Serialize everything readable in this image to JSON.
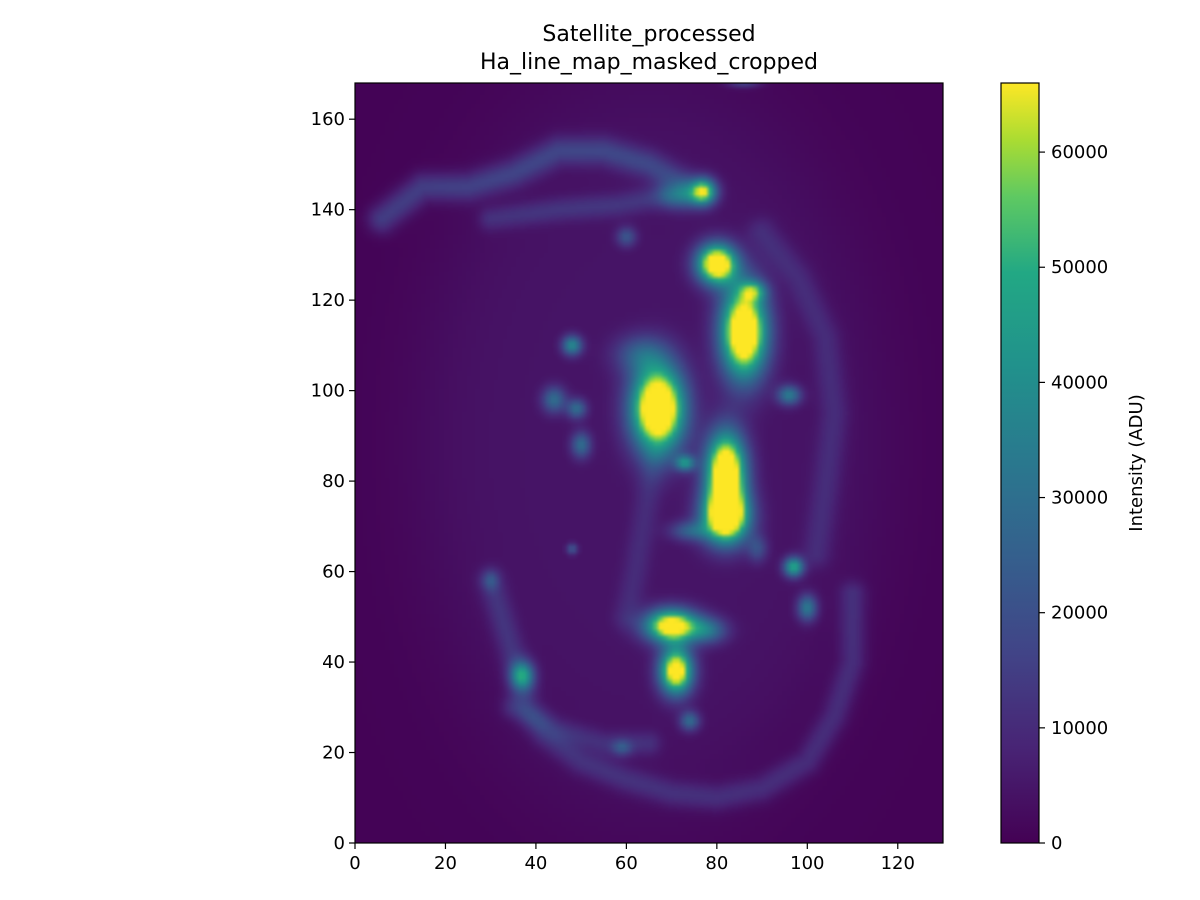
{
  "chart_data": {
    "type": "heatmap",
    "title": "Satellite_processed",
    "subtitle": "Ha_line_map_masked_cropped",
    "xlabel": "",
    "ylabel": "",
    "xlim": [
      0,
      130
    ],
    "ylim": [
      0,
      168
    ],
    "x_ticks": [
      0,
      20,
      40,
      60,
      80,
      100,
      120
    ],
    "y_ticks": [
      0,
      20,
      40,
      60,
      80,
      100,
      120,
      140,
      160
    ],
    "colormap": "viridis",
    "colorbar": {
      "label": "Intensity (ADU)",
      "range": [
        0,
        66000
      ],
      "ticks": [
        0,
        10000,
        20000,
        30000,
        40000,
        50000,
        60000
      ]
    },
    "grid": false,
    "features": [
      {
        "x": 67,
        "y": 96,
        "sx": 4.0,
        "sy": 6.5,
        "amp": 90000
      },
      {
        "x": 82,
        "y": 82,
        "sx": 3.0,
        "sy": 6.0,
        "amp": 85000
      },
      {
        "x": 82,
        "y": 72,
        "sx": 3.5,
        "sy": 4.0,
        "amp": 80000
      },
      {
        "x": 86,
        "y": 113,
        "sx": 3.5,
        "sy": 7.0,
        "amp": 85000
      },
      {
        "x": 80,
        "y": 128,
        "sx": 3.0,
        "sy": 3.0,
        "amp": 80000
      },
      {
        "x": 77,
        "y": 144,
        "sx": 2.0,
        "sy": 2.0,
        "amp": 60000
      },
      {
        "x": 72,
        "y": 143,
        "sx": 3.0,
        "sy": 2.0,
        "amp": 25000
      },
      {
        "x": 70,
        "y": 48,
        "sx": 4.0,
        "sy": 2.5,
        "amp": 75000
      },
      {
        "x": 71,
        "y": 38,
        "sx": 2.5,
        "sy": 3.5,
        "amp": 75000
      },
      {
        "x": 78,
        "y": 47,
        "sx": 3.0,
        "sy": 2.0,
        "amp": 25000
      },
      {
        "x": 37,
        "y": 37,
        "sx": 1.8,
        "sy": 2.2,
        "amp": 40000
      },
      {
        "x": 97,
        "y": 61,
        "sx": 1.5,
        "sy": 1.5,
        "amp": 45000
      },
      {
        "x": 100,
        "y": 52,
        "sx": 1.5,
        "sy": 2.0,
        "amp": 30000
      },
      {
        "x": 96,
        "y": 99,
        "sx": 1.8,
        "sy": 1.5,
        "amp": 30000
      },
      {
        "x": 48,
        "y": 110,
        "sx": 1.5,
        "sy": 1.5,
        "amp": 35000
      },
      {
        "x": 44,
        "y": 98,
        "sx": 1.8,
        "sy": 2.0,
        "amp": 25000
      },
      {
        "x": 49,
        "y": 96,
        "sx": 1.5,
        "sy": 1.5,
        "amp": 25000
      },
      {
        "x": 50,
        "y": 88,
        "sx": 1.5,
        "sy": 2.0,
        "amp": 25000
      },
      {
        "x": 73,
        "y": 84,
        "sx": 1.5,
        "sy": 1.2,
        "amp": 35000
      },
      {
        "x": 63,
        "y": 108,
        "sx": 4.0,
        "sy": 3.0,
        "amp": 18000
      },
      {
        "x": 88,
        "y": 122,
        "sx": 2.0,
        "sy": 1.5,
        "amp": 30000
      },
      {
        "x": 74,
        "y": 27,
        "sx": 1.5,
        "sy": 1.5,
        "amp": 25000
      },
      {
        "x": 59,
        "y": 21,
        "sx": 1.5,
        "sy": 1.2,
        "amp": 15000
      },
      {
        "x": 60,
        "y": 134,
        "sx": 1.5,
        "sy": 1.5,
        "amp": 18000
      },
      {
        "x": 74,
        "y": 69,
        "sx": 3.0,
        "sy": 1.5,
        "amp": 20000
      },
      {
        "x": 89,
        "y": 65,
        "sx": 1.5,
        "sy": 2.0,
        "amp": 15000
      },
      {
        "x": 48,
        "y": 65,
        "sx": 0.8,
        "sy": 0.8,
        "amp": 20000
      },
      {
        "x": 30,
        "y": 58,
        "sx": 1.2,
        "sy": 1.5,
        "amp": 12000
      },
      {
        "x": 86,
        "y": 168,
        "sx": 2.5,
        "sy": 0.7,
        "amp": 15000
      }
    ],
    "arcs": [
      {
        "pts": [
          [
            6,
            138
          ],
          [
            15,
            145
          ],
          [
            25,
            145
          ],
          [
            35,
            148
          ],
          [
            45,
            153
          ],
          [
            55,
            153
          ],
          [
            65,
            150
          ],
          [
            72,
            146
          ]
        ],
        "amp": 14000,
        "w": 2.2
      },
      {
        "pts": [
          [
            30,
            58
          ],
          [
            33,
            48
          ],
          [
            36,
            38
          ],
          [
            38,
            30
          ],
          [
            42,
            24
          ],
          [
            50,
            18
          ],
          [
            60,
            14
          ],
          [
            70,
            11
          ],
          [
            80,
            10
          ],
          [
            90,
            12
          ],
          [
            100,
            18
          ],
          [
            106,
            28
          ],
          [
            110,
            40
          ],
          [
            110,
            55
          ]
        ],
        "amp": 9000,
        "w": 2.0
      },
      {
        "pts": [
          [
            35,
            30
          ],
          [
            45,
            25
          ],
          [
            55,
            22
          ],
          [
            65,
            22
          ]
        ],
        "amp": 8000,
        "w": 1.8
      },
      {
        "pts": [
          [
            90,
            135
          ],
          [
            98,
            125
          ],
          [
            104,
            112
          ],
          [
            106,
            95
          ],
          [
            104,
            78
          ],
          [
            102,
            64
          ]
        ],
        "amp": 7000,
        "w": 2.2
      },
      {
        "pts": [
          [
            30,
            138
          ],
          [
            45,
            140
          ],
          [
            58,
            141
          ],
          [
            68,
            143
          ]
        ],
        "amp": 9000,
        "w": 1.8
      },
      {
        "pts": [
          [
            60,
            50
          ],
          [
            62,
            60
          ],
          [
            64,
            72
          ],
          [
            66,
            85
          ]
        ],
        "amp": 6000,
        "w": 2.0
      }
    ],
    "ellipse": {
      "cx": 65,
      "cy": 88,
      "rx": 50,
      "ry": 80,
      "amp": 4000,
      "edge": 8
    }
  }
}
